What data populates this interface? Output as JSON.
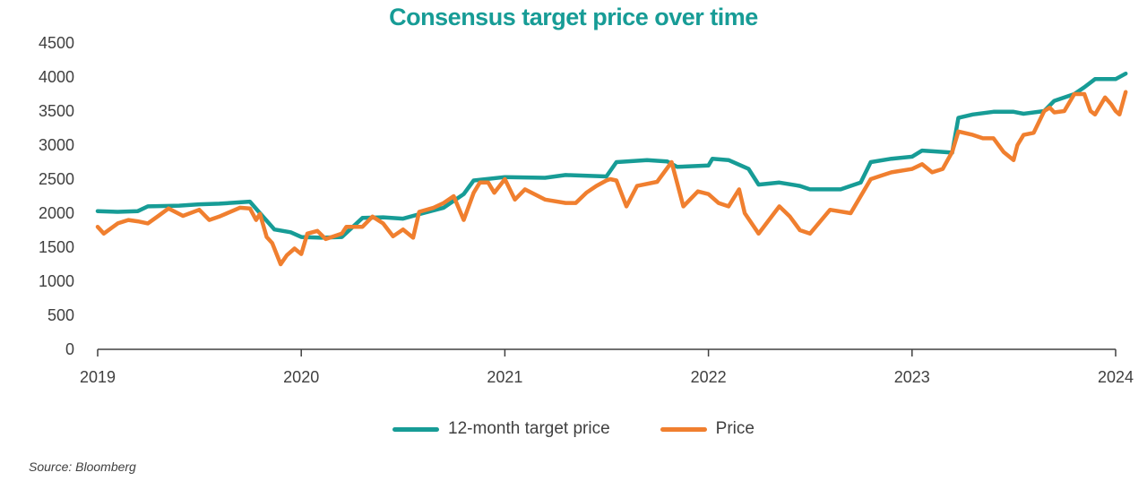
{
  "chart_data": {
    "type": "line",
    "title": "Consensus target price over time",
    "xlabel": "",
    "ylabel": "",
    "ylim": [
      0,
      4500
    ],
    "yticks": [
      "0",
      "500",
      "1000",
      "1500",
      "2000",
      "2500",
      "3000",
      "3500",
      "4000",
      "4500"
    ],
    "xticks": [
      "2019",
      "2020",
      "2021",
      "2022",
      "2023",
      "2024"
    ],
    "xlim": [
      "2019-01-01",
      "2024-01-20"
    ],
    "grid": false,
    "legend_position": "bottom",
    "series": [
      {
        "name": "12-month target price",
        "color": "#179c96",
        "points": [
          [
            "2019-01-01",
            2030
          ],
          [
            "2019-02-06",
            2020
          ],
          [
            "2019-03-14",
            2030
          ],
          [
            "2019-04-01",
            2100
          ],
          [
            "2019-05-27",
            2110
          ],
          [
            "2019-07-02",
            2130
          ],
          [
            "2019-08-07",
            2140
          ],
          [
            "2019-10-01",
            2170
          ],
          [
            "2019-10-19",
            2000
          ],
          [
            "2019-11-14",
            1760
          ],
          [
            "2019-12-13",
            1720
          ],
          [
            "2020-01-01",
            1650
          ],
          [
            "2020-02-06",
            1640
          ],
          [
            "2020-03-14",
            1650
          ],
          [
            "2020-04-20",
            1930
          ],
          [
            "2020-05-27",
            1940
          ],
          [
            "2020-07-02",
            1920
          ],
          [
            "2020-08-07",
            2000
          ],
          [
            "2020-09-13",
            2080
          ],
          [
            "2020-10-19",
            2280
          ],
          [
            "2020-11-06",
            2480
          ],
          [
            "2021-01-01",
            2530
          ],
          [
            "2021-03-14",
            2520
          ],
          [
            "2021-04-20",
            2560
          ],
          [
            "2021-07-02",
            2540
          ],
          [
            "2021-07-20",
            2750
          ],
          [
            "2021-09-13",
            2780
          ],
          [
            "2021-10-19",
            2760
          ],
          [
            "2021-11-06",
            2680
          ],
          [
            "2022-01-01",
            2700
          ],
          [
            "2022-01-08",
            2800
          ],
          [
            "2022-02-06",
            2780
          ],
          [
            "2022-03-14",
            2650
          ],
          [
            "2022-04-01",
            2420
          ],
          [
            "2022-05-08",
            2450
          ],
          [
            "2022-06-14",
            2400
          ],
          [
            "2022-07-02",
            2350
          ],
          [
            "2022-08-26",
            2350
          ],
          [
            "2022-10-01",
            2450
          ],
          [
            "2022-10-19",
            2750
          ],
          [
            "2022-11-25",
            2800
          ],
          [
            "2023-01-01",
            2830
          ],
          [
            "2023-01-19",
            2920
          ],
          [
            "2023-02-25",
            2900
          ],
          [
            "2023-03-14",
            2890
          ],
          [
            "2023-03-25",
            3400
          ],
          [
            "2023-04-20",
            3450
          ],
          [
            "2023-05-27",
            3490
          ],
          [
            "2023-07-02",
            3490
          ],
          [
            "2023-07-20",
            3460
          ],
          [
            "2023-08-26",
            3500
          ],
          [
            "2023-09-13",
            3650
          ],
          [
            "2023-10-19",
            3750
          ],
          [
            "2023-11-06",
            3850
          ],
          [
            "2023-11-25",
            3970
          ],
          [
            "2024-01-01",
            3970
          ],
          [
            "2024-01-19",
            4050
          ]
        ]
      },
      {
        "name": "Price",
        "color": "#f07f2f",
        "points": [
          [
            "2019-01-01",
            1800
          ],
          [
            "2019-01-12",
            1700
          ],
          [
            "2019-02-06",
            1850
          ],
          [
            "2019-02-25",
            1900
          ],
          [
            "2019-03-14",
            1880
          ],
          [
            "2019-04-01",
            1850
          ],
          [
            "2019-04-20",
            1960
          ],
          [
            "2019-05-08",
            2070
          ],
          [
            "2019-06-03",
            1960
          ],
          [
            "2019-07-02",
            2050
          ],
          [
            "2019-07-20",
            1900
          ],
          [
            "2019-08-07",
            1950
          ],
          [
            "2019-09-13",
            2080
          ],
          [
            "2019-10-01",
            2070
          ],
          [
            "2019-10-12",
            1900
          ],
          [
            "2019-10-19",
            1990
          ],
          [
            "2019-10-31",
            1650
          ],
          [
            "2019-11-10",
            1560
          ],
          [
            "2019-11-25",
            1250
          ],
          [
            "2019-12-06",
            1380
          ],
          [
            "2019-12-20",
            1480
          ],
          [
            "2020-01-01",
            1400
          ],
          [
            "2020-01-12",
            1700
          ],
          [
            "2020-01-30",
            1740
          ],
          [
            "2020-02-14",
            1620
          ],
          [
            "2020-03-14",
            1700
          ],
          [
            "2020-03-22",
            1800
          ],
          [
            "2020-04-20",
            1800
          ],
          [
            "2020-05-08",
            1950
          ],
          [
            "2020-05-27",
            1850
          ],
          [
            "2020-06-14",
            1660
          ],
          [
            "2020-07-02",
            1760
          ],
          [
            "2020-07-20",
            1640
          ],
          [
            "2020-07-31",
            2020
          ],
          [
            "2020-08-26",
            2080
          ],
          [
            "2020-09-13",
            2150
          ],
          [
            "2020-10-01",
            2250
          ],
          [
            "2020-10-19",
            1900
          ],
          [
            "2020-11-06",
            2300
          ],
          [
            "2020-11-17",
            2450
          ],
          [
            "2020-12-02",
            2450
          ],
          [
            "2020-12-13",
            2300
          ],
          [
            "2021-01-01",
            2500
          ],
          [
            "2021-01-19",
            2200
          ],
          [
            "2021-02-06",
            2350
          ],
          [
            "2021-03-14",
            2200
          ],
          [
            "2021-04-20",
            2150
          ],
          [
            "2021-05-08",
            2150
          ],
          [
            "2021-05-27",
            2300
          ],
          [
            "2021-06-14",
            2400
          ],
          [
            "2021-07-02",
            2480
          ],
          [
            "2021-07-09",
            2500
          ],
          [
            "2021-07-20",
            2480
          ],
          [
            "2021-08-07",
            2100
          ],
          [
            "2021-08-26",
            2400
          ],
          [
            "2021-10-01",
            2460
          ],
          [
            "2021-10-27",
            2750
          ],
          [
            "2021-11-17",
            2100
          ],
          [
            "2021-12-13",
            2320
          ],
          [
            "2022-01-01",
            2280
          ],
          [
            "2022-01-19",
            2150
          ],
          [
            "2022-02-06",
            2100
          ],
          [
            "2022-02-25",
            2350
          ],
          [
            "2022-03-07",
            2000
          ],
          [
            "2022-04-01",
            1700
          ],
          [
            "2022-05-08",
            2100
          ],
          [
            "2022-05-27",
            1950
          ],
          [
            "2022-06-14",
            1750
          ],
          [
            "2022-07-02",
            1700
          ],
          [
            "2022-08-07",
            2050
          ],
          [
            "2022-09-13",
            2000
          ],
          [
            "2022-10-01",
            2250
          ],
          [
            "2022-10-19",
            2500
          ],
          [
            "2022-11-06",
            2550
          ],
          [
            "2022-11-25",
            2600
          ],
          [
            "2023-01-01",
            2650
          ],
          [
            "2023-01-19",
            2720
          ],
          [
            "2023-02-06",
            2600
          ],
          [
            "2023-02-25",
            2650
          ],
          [
            "2023-03-14",
            2900
          ],
          [
            "2023-03-25",
            3200
          ],
          [
            "2023-04-20",
            3150
          ],
          [
            "2023-05-08",
            3100
          ],
          [
            "2023-05-27",
            3100
          ],
          [
            "2023-06-14",
            2900
          ],
          [
            "2023-07-02",
            2780
          ],
          [
            "2023-07-09",
            3000
          ],
          [
            "2023-07-20",
            3150
          ],
          [
            "2023-08-07",
            3180
          ],
          [
            "2023-08-26",
            3500
          ],
          [
            "2023-09-05",
            3550
          ],
          [
            "2023-09-13",
            3480
          ],
          [
            "2023-10-01",
            3500
          ],
          [
            "2023-10-19",
            3750
          ],
          [
            "2023-11-06",
            3750
          ],
          [
            "2023-11-17",
            3500
          ],
          [
            "2023-11-25",
            3450
          ],
          [
            "2023-12-13",
            3700
          ],
          [
            "2023-12-24",
            3600
          ],
          [
            "2024-01-01",
            3500
          ],
          [
            "2024-01-08",
            3450
          ],
          [
            "2024-01-19",
            3780
          ]
        ]
      }
    ]
  },
  "source": "Source: Bloomberg"
}
